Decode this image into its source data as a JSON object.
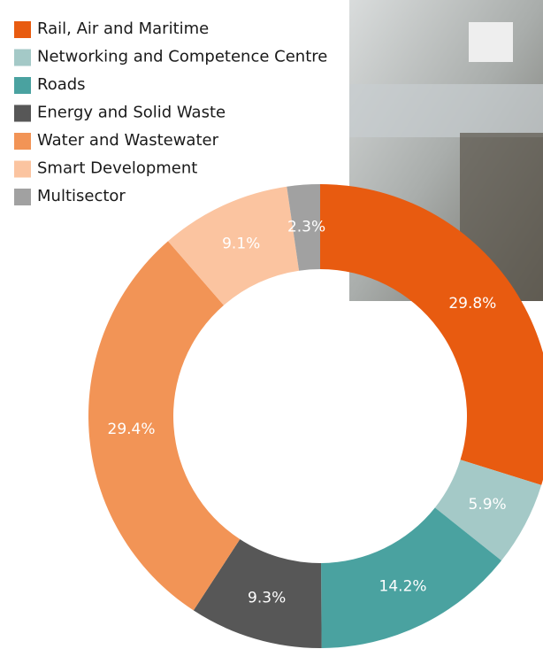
{
  "chart_data": {
    "type": "donut",
    "categories": [
      "Rail, Air and Maritime",
      "Networking and Competence Centre",
      "Roads",
      "Energy and Solid Waste",
      "Water and Wastewater",
      "Smart Development",
      "Multisector"
    ],
    "values": [
      29.8,
      5.9,
      14.2,
      9.3,
      29.4,
      9.1,
      2.3
    ],
    "value_labels": [
      "29.8%",
      "5.9%",
      "14.2%",
      "9.3%",
      "29.4%",
      "9.1%",
      "2.3%"
    ],
    "colors": [
      "#e85b10",
      "#a4c9c7",
      "#4aa2a0",
      "#575757",
      "#f29456",
      "#fbc4a0",
      "#a1a1a1"
    ]
  }
}
